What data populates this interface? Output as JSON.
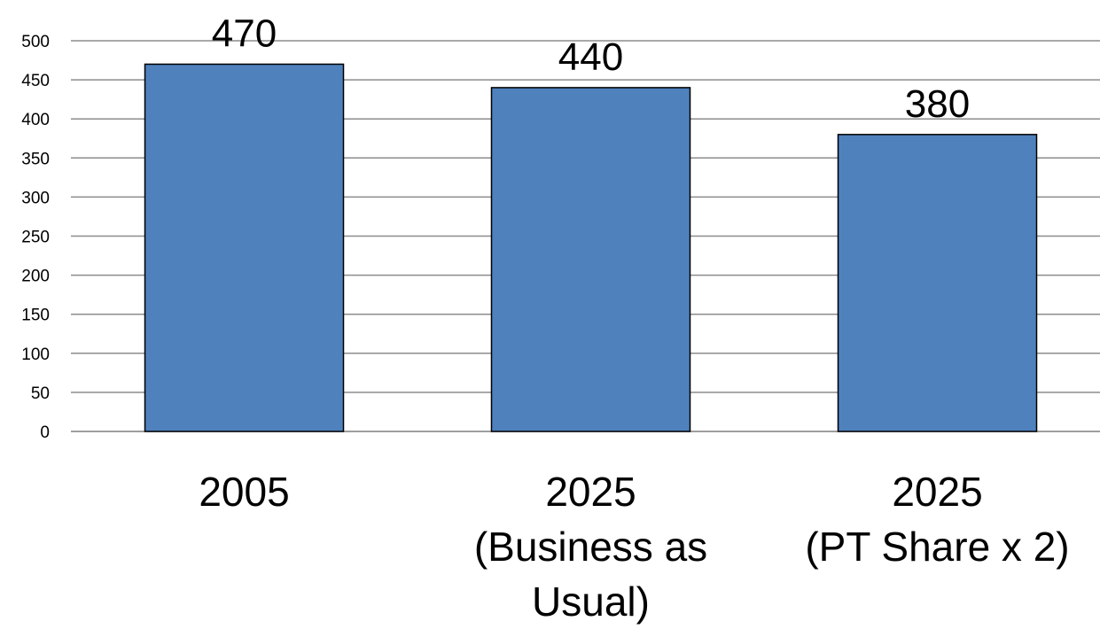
{
  "chart_data": {
    "type": "bar",
    "categories": [
      [
        "2005"
      ],
      [
        "2025",
        "(Business as",
        "Usual)"
      ],
      [
        "2025",
        "(PT Share x 2)"
      ]
    ],
    "values": [
      470,
      440,
      380
    ],
    "data_labels": [
      "470",
      "440",
      "380"
    ],
    "title": "",
    "xlabel": "",
    "ylabel": "",
    "ylim": [
      0,
      500
    ],
    "yticks": [
      0,
      50,
      100,
      150,
      200,
      250,
      300,
      350,
      400,
      450,
      500
    ],
    "grid": true,
    "legend": "none",
    "colors": {
      "bar_fill": "#4f81bd",
      "bar_outline": "#000000",
      "grid": "#8c8c8c",
      "text": "#000000"
    }
  }
}
